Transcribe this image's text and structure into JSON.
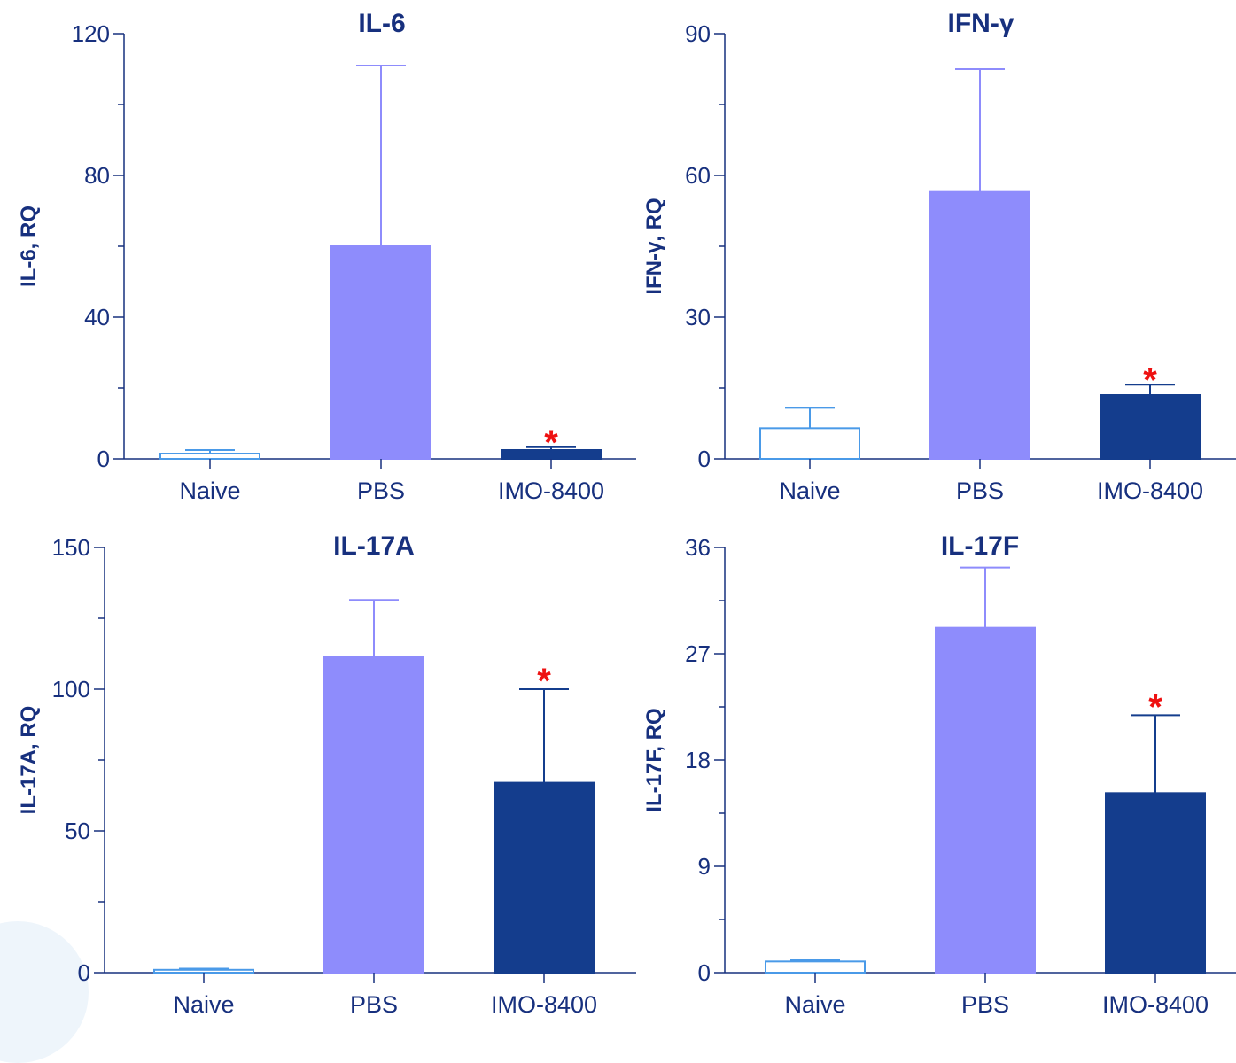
{
  "colors": {
    "axis": "#17307e",
    "naive_stroke": "#4a9ae8",
    "pbs_fill": "#8e8cfc",
    "imo_fill": "#143d8d",
    "significance": "#ee1111"
  },
  "chart_data": [
    {
      "type": "bar",
      "title": "IL-6",
      "ylabel": "IL-6, RQ",
      "categories": [
        "Naive",
        "PBS",
        "IMO-8400"
      ],
      "values": [
        1.5,
        60,
        2.5
      ],
      "error_upper": [
        2.5,
        111,
        3.3
      ],
      "ylim": [
        0,
        120
      ],
      "yticks": [
        0,
        40,
        80,
        120
      ],
      "yticks_labels": [
        "0",
        "40",
        "80",
        "120"
      ],
      "significance": [
        "",
        "",
        "*"
      ]
    },
    {
      "type": "bar",
      "title": "IFN-γ",
      "ylabel": "IFN-γ, RQ",
      "categories": [
        "Naive",
        "PBS",
        "IMO-8400"
      ],
      "values": [
        6.5,
        56.5,
        13.5
      ],
      "error_upper": [
        10.8,
        82.5,
        15.7
      ],
      "ylim": [
        0,
        90
      ],
      "yticks": [
        0,
        30,
        60,
        90
      ],
      "yticks_labels": [
        "0",
        "30",
        "60",
        "90"
      ],
      "significance": [
        "",
        "",
        "*"
      ]
    },
    {
      "type": "bar",
      "title": "IL-17A",
      "ylabel": "IL-17A, RQ",
      "categories": [
        "Naive",
        "PBS",
        "IMO-8400"
      ],
      "values": [
        1,
        111.5,
        67
      ],
      "error_upper": [
        1.4,
        131.5,
        100
      ],
      "ylim": [
        0,
        150
      ],
      "yticks": [
        0,
        50,
        100,
        150
      ],
      "yticks_labels": [
        "0",
        "50",
        "100",
        "150"
      ],
      "significance": [
        "",
        "",
        "*"
      ]
    },
    {
      "type": "bar",
      "title": "IL-17F",
      "ylabel": "IL-17F, RQ",
      "categories": [
        "Naive",
        "PBS",
        "IMO-8400"
      ],
      "values": [
        0.95,
        29.2,
        15.2
      ],
      "error_upper": [
        1.05,
        34.3,
        21.8
      ],
      "ylim": [
        0,
        36
      ],
      "yticks": [
        0,
        9,
        18,
        27,
        36
      ],
      "yticks_labels": [
        "0",
        "9",
        "18",
        "27",
        "36"
      ],
      "significance": [
        "",
        "",
        "*"
      ]
    }
  ]
}
